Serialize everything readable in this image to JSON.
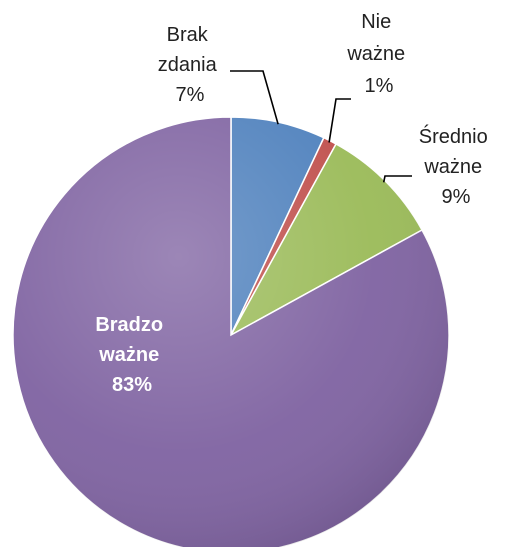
{
  "chart_data": {
    "type": "pie",
    "slices": [
      {
        "label_lines": [
          "Brak",
          "zdania"
        ],
        "percent_label": "7%",
        "value": 7,
        "color": "#4F81BD"
      },
      {
        "label_lines": [
          "Nie",
          "ważne"
        ],
        "percent_label": "1%",
        "value": 1,
        "color": "#C0504D"
      },
      {
        "label_lines": [
          "Średnio",
          "ważne"
        ],
        "percent_label": "9%",
        "value": 9,
        "color": "#9BBB59"
      },
      {
        "label_lines": [
          "Bradzo",
          "ważne"
        ],
        "percent_label": "83%",
        "value": 83,
        "color": "#8064A2"
      }
    ]
  }
}
